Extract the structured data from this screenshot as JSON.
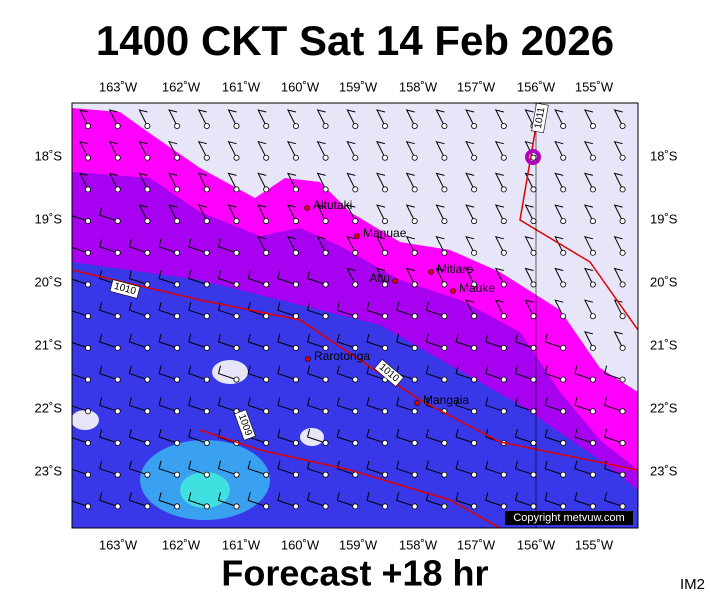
{
  "title": "1400 CKT Sat 14 Feb 2026",
  "footer": "Forecast +18 hr",
  "product": "IM2",
  "copyright": "Copyright metvuw.com",
  "lon_ticks": [
    "163˚W",
    "162˚W",
    "161˚W",
    "160˚W",
    "159˚W",
    "158˚W",
    "157˚W",
    "156˚W",
    "155˚W"
  ],
  "lat_ticks": [
    "18˚S",
    "19˚S",
    "20˚S",
    "21˚S",
    "22˚S",
    "23˚S"
  ],
  "places": [
    {
      "name": "Aitutaki"
    },
    {
      "name": "Manuae"
    },
    {
      "name": "Atiu"
    },
    {
      "name": "Mitiaro"
    },
    {
      "name": "Mauke"
    },
    {
      "name": "Rarotonga"
    },
    {
      "name": "Mangaia"
    }
  ],
  "isobar_labels": [
    "1011",
    "1010",
    "1010",
    "1009"
  ]
}
